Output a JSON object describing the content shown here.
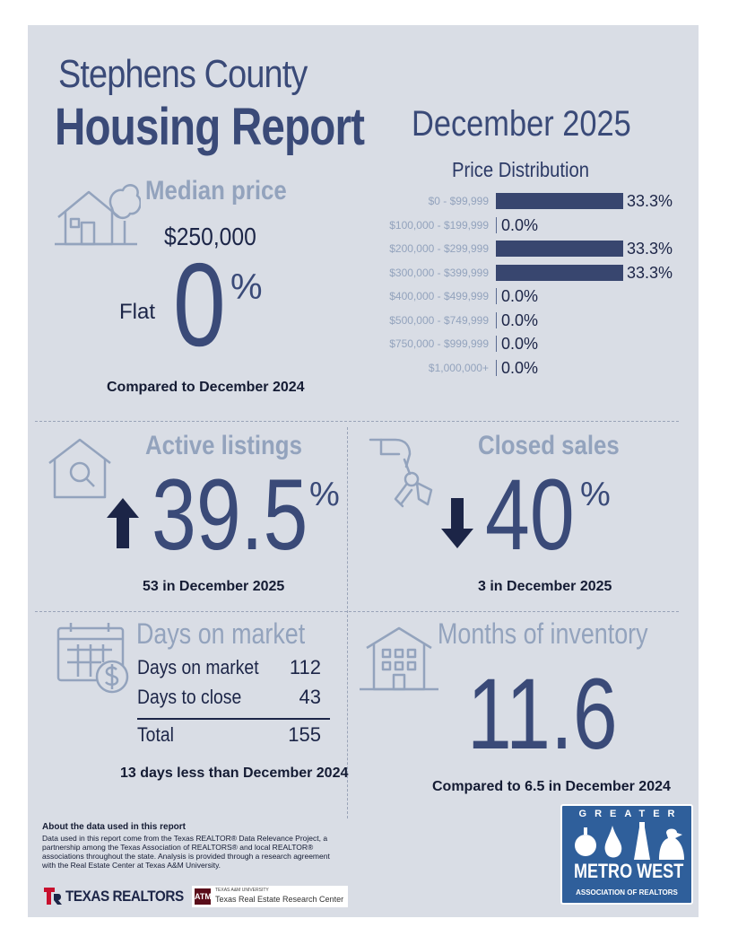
{
  "header": {
    "county": "Stephens County",
    "report": "Housing Report",
    "date": "December 2025"
  },
  "median_price": {
    "label": "Median price",
    "value": "$250,000",
    "direction": "Flat",
    "change": "0",
    "pct_sign": "%",
    "compare": "Compared to December 2024"
  },
  "price_distribution": {
    "title": "Price Distribution",
    "rows": [
      {
        "range": "$0 - $99,999",
        "pct": "33.3%"
      },
      {
        "range": "$100,000 - $199,999",
        "pct": "0.0%"
      },
      {
        "range": "$200,000 - $299,999",
        "pct": "33.3%"
      },
      {
        "range": "$300,000 - $399,999",
        "pct": "33.3%"
      },
      {
        "range": "$400,000 - $499,999",
        "pct": "0.0%"
      },
      {
        "range": "$500,000 - $749,999",
        "pct": "0.0%"
      },
      {
        "range": "$750,000 - $999,999",
        "pct": "0.0%"
      },
      {
        "range": "$1,000,000+",
        "pct": "0.0%"
      }
    ]
  },
  "chart_data": {
    "type": "bar",
    "title": "Price Distribution",
    "categories": [
      "$0 - $99,999",
      "$100,000 - $199,999",
      "$200,000 - $299,999",
      "$300,000 - $399,999",
      "$400,000 - $499,999",
      "$500,000 - $749,999",
      "$750,000 - $999,999",
      "$1,000,000+"
    ],
    "values": [
      33.3,
      0.0,
      33.3,
      33.3,
      0.0,
      0.0,
      0.0,
      0.0
    ],
    "orientation": "horizontal",
    "grid": false
  },
  "active_listings": {
    "label": "Active listings",
    "change": "39.5",
    "pct_sign": "%",
    "sub": "53 in December 2025"
  },
  "closed_sales": {
    "label": "Closed sales",
    "change": "40",
    "pct_sign": "%",
    "sub": "3 in December 2025"
  },
  "days_on_market": {
    "title": "Days on market",
    "rows": [
      {
        "label": "Days on market",
        "value": "112"
      },
      {
        "label": "Days to close",
        "value": "43"
      }
    ],
    "total_label": "Total",
    "total_value": "155",
    "compare": "13 days less than December 2024"
  },
  "months_inventory": {
    "title": "Months of inventory",
    "value": "11.6",
    "compare": "Compared to 6.5 in December 2024"
  },
  "footer": {
    "about_heading": "About the data used in this report",
    "about_body": "Data used in this report come from the Texas REALTOR® Data Relevance Project, a partnership among the Texas Association of REALTORS® and local REALTOR® associations throughout the state. Analysis is provided through a research agreement with the Real Estate Center at Texas A&M University.",
    "texas_realtors": "TEXAS REALTORS",
    "am_small": "TEXAS A&M UNIVERSITY",
    "am_name": "Texas Real Estate Research Center",
    "logo_greater": "GREATER",
    "logo_metro": "METRO WEST",
    "logo_assoc": "ASSOCIATION OF REALTORS"
  },
  "colors": {
    "navy": "#3a4a78",
    "muted": "#93a3bd",
    "background": "#d9dde5",
    "bar": "#38466f",
    "logo_blue": "#2f5f9b"
  }
}
